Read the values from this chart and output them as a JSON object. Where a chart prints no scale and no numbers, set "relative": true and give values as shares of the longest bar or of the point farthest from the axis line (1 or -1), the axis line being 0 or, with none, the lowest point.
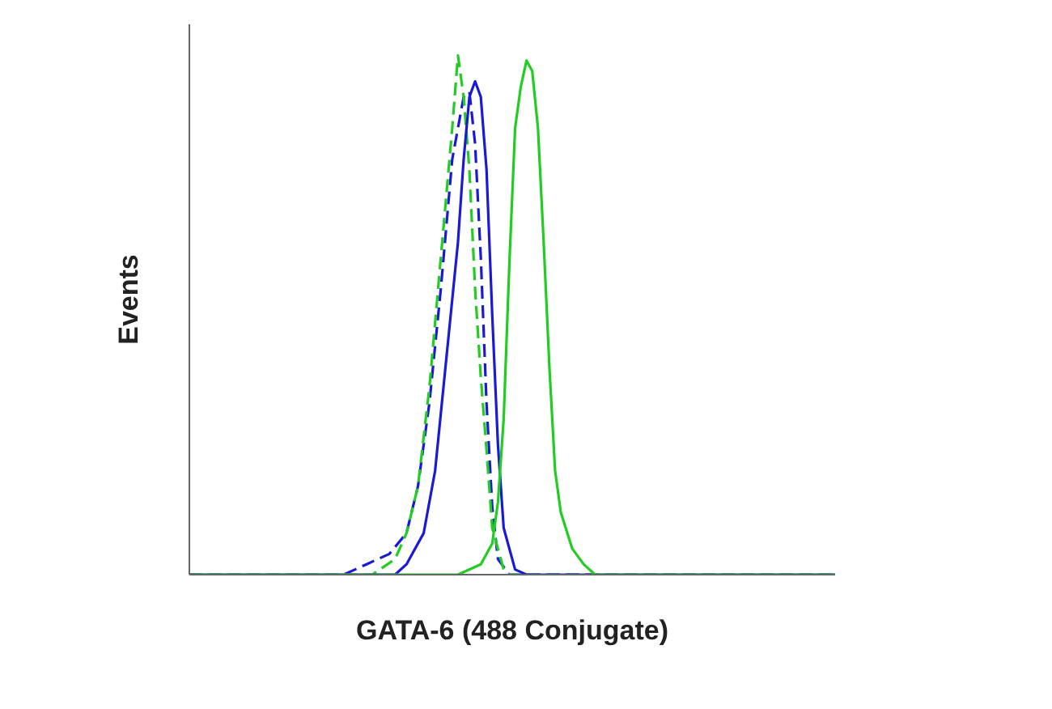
{
  "chart_data": {
    "type": "line",
    "relative": true,
    "xlabel": "GATA-6 (488 Conjugate)",
    "ylabel": "Events",
    "categories": [
      null,
      null,
      null,
      null,
      null,
      null,
      null,
      null,
      null,
      null,
      null,
      null,
      null,
      null,
      null,
      null,
      null,
      null,
      null,
      null,
      null,
      null,
      null,
      null,
      null,
      null,
      null,
      null,
      null,
      null,
      null,
      null,
      null,
      null,
      null,
      null,
      null,
      null,
      null,
      null,
      null,
      null,
      null,
      null,
      null,
      null,
      null,
      null,
      null,
      null,
      null,
      null,
      null,
      null,
      null,
      null,
      null,
      null,
      null,
      null,
      null,
      null,
      null,
      null,
      null,
      null,
      null,
      null,
      null,
      null,
      null,
      null,
      null,
      null,
      null,
      null,
      null,
      null,
      null,
      null,
      null,
      null,
      null,
      null,
      null,
      null,
      null,
      null,
      null,
      null,
      null,
      null,
      null,
      null,
      null,
      null,
      null,
      null,
      null,
      null,
      null,
      null,
      null,
      null,
      null,
      null,
      null,
      null,
      null,
      null,
      null,
      null,
      null,
      null
    ],
    "series": [
      {
        "color": "#1a1ad6",
        "line_style": "dashed",
        "values": [
          0,
          null,
          null,
          null,
          null,
          null,
          null,
          null,
          null,
          null,
          null,
          null,
          null,
          null,
          null,
          null,
          null,
          null,
          null,
          null,
          null,
          null,
          null,
          null,
          null,
          null,
          null,
          0,
          null,
          null,
          null,
          0.02,
          null,
          null,
          null,
          0.04,
          null,
          null,
          0.08,
          null,
          0.17,
          null,
          0.33,
          null,
          0.55,
          null,
          0.8,
          null,
          0.92,
          0.93,
          0.83,
          0.61,
          0.33,
          0.13,
          0.03,
          null,
          0,
          null,
          null,
          null,
          null,
          null,
          null,
          null,
          null,
          null,
          null,
          null,
          null,
          null,
          null,
          null,
          null,
          null,
          null,
          null,
          null,
          null,
          null,
          null,
          null,
          null,
          null,
          null,
          null,
          null,
          null,
          null,
          null,
          null,
          null,
          null,
          null,
          null,
          null,
          null,
          null,
          null,
          null,
          null,
          null,
          null,
          null,
          null,
          null,
          null,
          null,
          null,
          null,
          null,
          null,
          null,
          null,
          0
        ]
      },
      {
        "color": "#22cc22",
        "line_style": "dashed",
        "values": [
          0,
          null,
          null,
          null,
          null,
          null,
          null,
          null,
          null,
          null,
          null,
          null,
          null,
          null,
          null,
          null,
          null,
          null,
          null,
          null,
          null,
          null,
          null,
          null,
          null,
          null,
          null,
          null,
          null,
          null,
          null,
          null,
          0,
          null,
          null,
          null,
          0.03,
          null,
          0.08,
          null,
          0.17,
          null,
          0.36,
          null,
          0.61,
          null,
          0.86,
          1,
          0.92,
          0.78,
          0.55,
          0.38,
          0.24,
          0.09,
          null,
          0.01,
          0,
          null,
          null,
          null,
          null,
          null,
          null,
          null,
          null,
          null,
          null,
          null,
          null,
          null,
          null,
          null,
          null,
          null,
          null,
          null,
          null,
          null,
          null,
          null,
          null,
          null,
          null,
          null,
          null,
          null,
          null,
          null,
          null,
          null,
          null,
          null,
          null,
          null,
          null,
          null,
          null,
          null,
          null,
          null,
          null,
          null,
          null,
          null,
          null,
          null,
          null,
          null,
          null,
          null,
          null,
          null,
          null,
          0
        ]
      },
      {
        "color": "#1a1ad6",
        "line_style": "solid",
        "values": [
          0,
          null,
          null,
          null,
          null,
          null,
          null,
          null,
          null,
          null,
          null,
          null,
          null,
          null,
          null,
          null,
          null,
          null,
          null,
          null,
          null,
          null,
          null,
          null,
          null,
          null,
          null,
          null,
          null,
          null,
          null,
          null,
          null,
          null,
          null,
          null,
          0,
          null,
          0.02,
          null,
          null,
          0.08,
          null,
          0.2,
          null,
          0.42,
          null,
          0.64,
          0.8,
          0.92,
          0.95,
          0.92,
          0.78,
          0.5,
          0.25,
          0.09,
          null,
          0.01,
          null,
          0,
          null,
          null,
          null,
          null,
          null,
          null,
          null,
          null,
          null,
          null,
          null,
          null,
          null,
          null,
          null,
          null,
          null,
          null,
          null,
          null,
          null,
          null,
          null,
          null,
          null,
          null,
          null,
          null,
          null,
          null,
          null,
          null,
          null,
          null,
          null,
          null,
          null,
          null,
          null,
          null,
          null,
          null,
          null,
          null,
          null,
          null,
          null,
          null,
          null,
          null,
          null,
          null,
          null,
          0
        ]
      },
      {
        "color": "#22cc22",
        "line_style": "solid",
        "values": [
          0,
          null,
          null,
          null,
          null,
          null,
          null,
          null,
          null,
          null,
          null,
          null,
          null,
          null,
          null,
          null,
          null,
          null,
          null,
          null,
          null,
          null,
          null,
          null,
          null,
          null,
          null,
          null,
          null,
          null,
          null,
          null,
          null,
          null,
          null,
          null,
          null,
          null,
          null,
          null,
          null,
          null,
          null,
          null,
          null,
          null,
          null,
          0,
          null,
          null,
          null,
          0.02,
          null,
          0.06,
          0.14,
          0.3,
          0.6,
          0.86,
          0.94,
          0.99,
          0.97,
          0.86,
          0.64,
          0.4,
          0.2,
          0.12,
          null,
          0.05,
          null,
          0.02,
          null,
          0,
          null,
          null,
          null,
          null,
          null,
          null,
          null,
          null,
          null,
          null,
          null,
          null,
          null,
          null,
          null,
          null,
          null,
          null,
          null,
          null,
          null,
          null,
          null,
          null,
          null,
          null,
          null,
          null,
          null,
          null,
          null,
          null,
          null,
          null,
          null,
          null,
          null,
          null,
          null,
          null,
          null,
          0
        ]
      }
    ]
  }
}
